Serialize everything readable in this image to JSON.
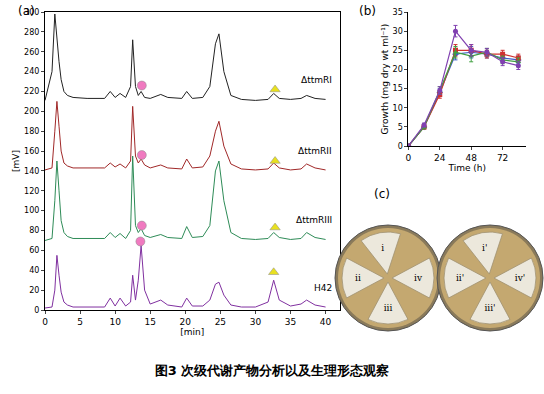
{
  "caption": "图3 次级代谢产物分析以及生理形态观察",
  "chart_data": [
    {
      "type": "line",
      "label": "(a)",
      "x_label": "[min]",
      "y_label": "[mV]",
      "xlim": [
        0,
        42
      ],
      "xticks": [
        0,
        5,
        10,
        15,
        20,
        25,
        30,
        35,
        40
      ],
      "ylim": [
        0,
        300
      ],
      "yticks": [
        0,
        20,
        40,
        60,
        80,
        100,
        120,
        140,
        160,
        180,
        200,
        220,
        240,
        260,
        280,
        300
      ],
      "grid": false,
      "x": [
        0,
        1.0,
        1.4,
        1.7,
        2.0,
        2.3,
        2.7,
        3.2,
        4,
        6,
        8.5,
        9.3,
        10,
        10.7,
        11.5,
        12.2,
        12.5,
        12.9,
        13.3,
        13.7,
        14.2,
        15,
        16.5,
        17.5,
        19.5,
        20.2,
        21,
        22.5,
        23.5,
        24.3,
        24.8,
        25.5,
        26.5,
        28,
        30,
        31.8,
        32.6,
        33.4,
        35,
        36.5,
        37.3,
        38.5,
        40
      ],
      "series": [
        {
          "name": "ΔttmRI",
          "color": "#222222",
          "values": [
            211,
            240,
            298,
            270,
            250,
            232,
            220,
            216,
            214,
            213,
            213,
            220,
            214,
            218,
            214,
            225,
            272,
            225,
            216,
            220,
            214,
            213,
            217,
            214,
            213,
            220,
            213,
            214,
            225,
            268,
            278,
            240,
            216,
            212,
            211,
            212,
            218,
            213,
            212,
            213,
            216,
            213,
            212
          ]
        },
        {
          "name": "ΔttmRII",
          "color": "#a02828",
          "values": [
            141,
            143,
            180,
            210,
            185,
            160,
            148,
            145,
            143,
            143,
            143,
            148,
            144,
            147,
            143,
            150,
            205,
            155,
            148,
            152,
            146,
            143,
            146,
            143,
            142,
            152,
            143,
            144,
            155,
            180,
            190,
            165,
            147,
            142,
            141,
            142,
            148,
            143,
            141,
            142,
            147,
            143,
            141
          ]
        },
        {
          "name": "ΔttmRIII",
          "color": "#2e8b57",
          "values": [
            70,
            72,
            110,
            150,
            120,
            90,
            78,
            74,
            72,
            72,
            72,
            78,
            73,
            77,
            72,
            80,
            155,
            85,
            78,
            82,
            75,
            73,
            76,
            73,
            72,
            84,
            73,
            74,
            85,
            140,
            150,
            110,
            78,
            72,
            71,
            72,
            78,
            73,
            71,
            72,
            78,
            73,
            71
          ]
        },
        {
          "name": "H42",
          "color": "#8030a0",
          "values": [
            2,
            3,
            20,
            55,
            35,
            18,
            8,
            5,
            3,
            3,
            3,
            12,
            4,
            12,
            4,
            8,
            35,
            10,
            30,
            65,
            20,
            6,
            10,
            5,
            3,
            12,
            4,
            4,
            10,
            26,
            28,
            15,
            5,
            3,
            3,
            8,
            30,
            10,
            4,
            6,
            10,
            5,
            3
          ]
        },
        {
          "type": "scatter",
          "marker": "circle",
          "color": "#f07ac0",
          "x": [
            13.8,
            13.8,
            13.8,
            13.6
          ],
          "values": [
            226,
            156,
            85,
            69
          ]
        },
        {
          "type": "scatter",
          "marker": "triangle-up",
          "color": "#e8e020",
          "x": [
            32.8,
            32.8,
            32.8,
            32.6
          ],
          "values": [
            222,
            150,
            83,
            38
          ]
        }
      ]
    },
    {
      "type": "line",
      "label": "(b)",
      "x_label": "Time (h)",
      "y_label": "Growth (mg dry wt ml⁻¹)",
      "xlim": [
        0,
        90
      ],
      "xticks": [
        0,
        24,
        48,
        72
      ],
      "ylim": [
        0,
        35
      ],
      "yticks": [
        0,
        5,
        10,
        15,
        20,
        25,
        30,
        35
      ],
      "grid": false,
      "x": [
        0,
        12,
        24,
        36,
        48,
        60,
        72,
        84
      ],
      "series": [
        {
          "color": "#3c5ec8",
          "marker": "diamond",
          "values": [
            0,
            5,
            14,
            24,
            24.5,
            24,
            23,
            22.5
          ],
          "error": [
            0,
            0.5,
            1,
            1.5,
            1.5,
            1,
            1,
            1
          ]
        },
        {
          "color": "#d03030",
          "marker": "square",
          "values": [
            0,
            5,
            13.5,
            25,
            25,
            24,
            24,
            23
          ],
          "error": [
            0,
            0.5,
            1,
            1.5,
            1.5,
            1,
            1,
            1
          ]
        },
        {
          "color": "#40a040",
          "marker": "triangle-up",
          "values": [
            0,
            5,
            14.5,
            24.5,
            23.5,
            24.5,
            22.5,
            22
          ],
          "error": [
            0,
            0.5,
            1,
            1.5,
            1.5,
            1,
            1,
            1
          ]
        },
        {
          "color": "#8040b0",
          "marker": "circle",
          "values": [
            0,
            5.5,
            14.5,
            30,
            25,
            24.5,
            22,
            21
          ],
          "error": [
            0,
            0.5,
            1,
            1.5,
            1.5,
            1,
            1,
            1
          ]
        }
      ]
    }
  ],
  "panel_c": {
    "label": "(c)",
    "plates": [
      {
        "sectors": [
          "i",
          "ii",
          "iii",
          "iv"
        ]
      },
      {
        "sectors": [
          "i'",
          "ii'",
          "iii'",
          "iv'"
        ]
      }
    ]
  }
}
